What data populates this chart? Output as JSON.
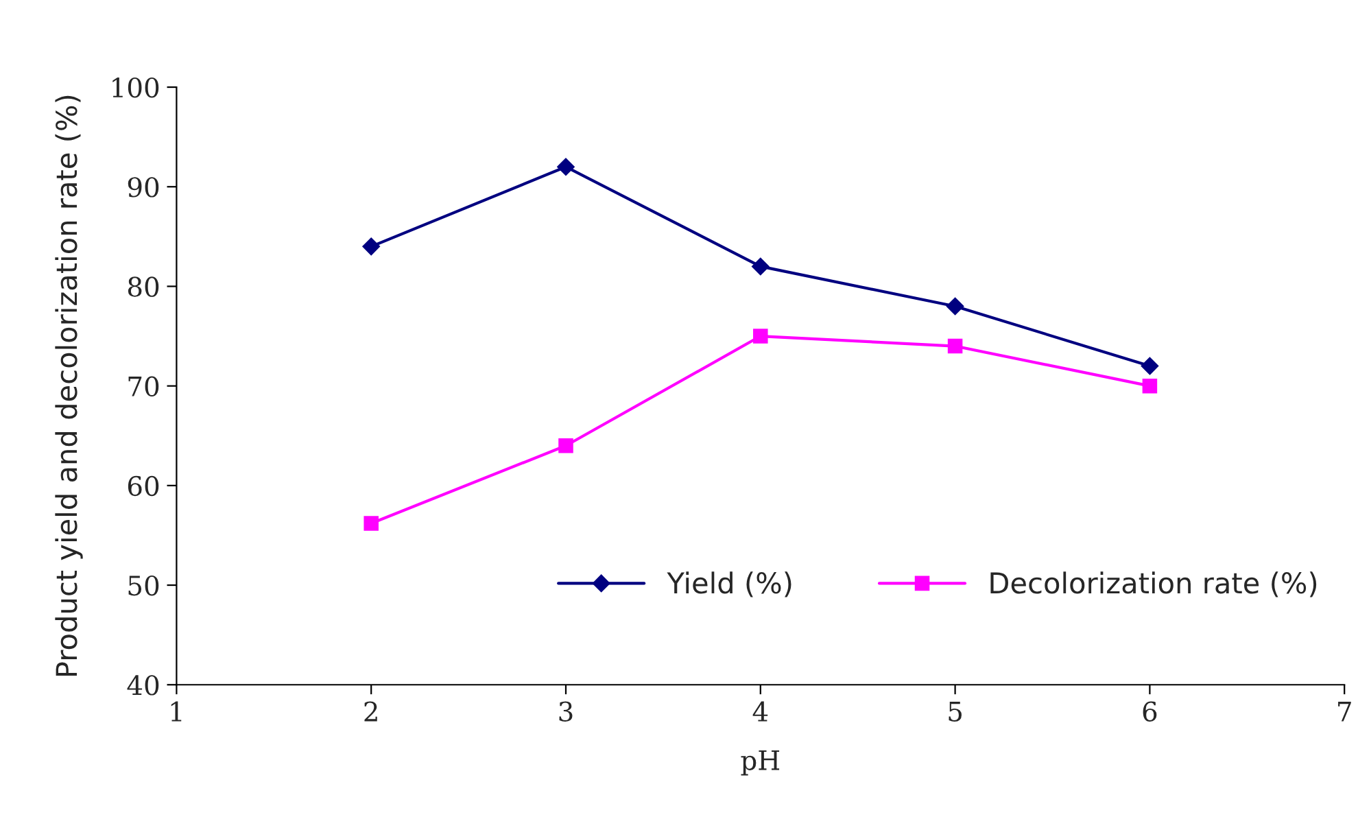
{
  "chart_data": {
    "type": "line",
    "xlabel": "pH",
    "ylabel": "Product yield and decolorization rate (%)",
    "x": [
      2,
      3,
      4,
      5,
      6
    ],
    "series": [
      {
        "name": "Yield (%)",
        "color": "#000080",
        "marker": "diamond",
        "values": [
          84,
          92,
          82,
          78,
          72
        ]
      },
      {
        "name": "Decolorization rate (%)",
        "color": "#ff00ff",
        "marker": "square",
        "values": [
          56.2,
          64,
          75,
          74,
          70
        ]
      }
    ],
    "xlim": [
      1,
      7
    ],
    "xticks": [
      1,
      2,
      3,
      4,
      5,
      6,
      7
    ],
    "ylim": [
      40,
      100
    ],
    "yticks": [
      40,
      50,
      60,
      70,
      80,
      90,
      100
    ],
    "grid": false,
    "legend": "bottom right",
    "line_style": "solid"
  }
}
